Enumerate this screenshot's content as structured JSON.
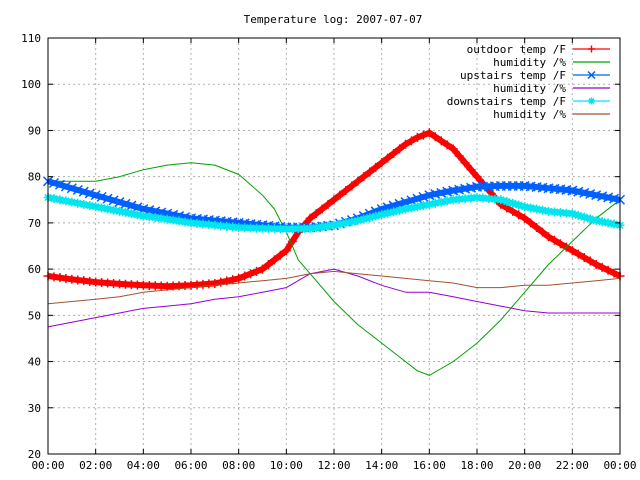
{
  "chart_data": {
    "type": "line",
    "title": "Temperature log: 2007-07-07",
    "xlabel": "",
    "ylabel": "",
    "x_range_hours": [
      0,
      24
    ],
    "ylim": [
      20,
      110
    ],
    "grid": true,
    "legend_position": "top-right",
    "x_tick_labels": [
      "00:00",
      "02:00",
      "04:00",
      "06:00",
      "08:00",
      "10:00",
      "12:00",
      "14:00",
      "16:00",
      "18:00",
      "20:00",
      "22:00",
      "00:00"
    ],
    "y_tick_labels": [
      "20",
      "30",
      "40",
      "50",
      "60",
      "70",
      "80",
      "90",
      "100",
      "110"
    ],
    "series": [
      {
        "name": "outdoor temp /F",
        "color": "#ff0000",
        "marker": "plus",
        "x": [
          0,
          1,
          2,
          3,
          4,
          5,
          6,
          7,
          8,
          9,
          10,
          10.5,
          11,
          12,
          13,
          14,
          15,
          15.5,
          16,
          17,
          18,
          19,
          20,
          21,
          22,
          23,
          24
        ],
        "values": [
          58.5,
          57.8,
          57.2,
          56.8,
          56.5,
          56.3,
          56.5,
          56.9,
          58,
          60,
          64,
          68,
          71,
          75,
          79,
          83,
          87,
          88.5,
          89.5,
          86,
          80,
          74,
          71,
          67,
          64,
          61,
          58.5
        ]
      },
      {
        "name": "humidity /%",
        "color": "#00a000",
        "marker": "none",
        "x": [
          0,
          1,
          2,
          3,
          4,
          5,
          6,
          7,
          8,
          9,
          9.5,
          10,
          10.5,
          11,
          12,
          13,
          14,
          15,
          15.5,
          16,
          16.5,
          17,
          18,
          19,
          20,
          21,
          22,
          23,
          24
        ],
        "values": [
          79,
          79,
          79,
          80,
          81.5,
          82.5,
          83,
          82.5,
          80.5,
          76,
          73,
          68,
          62,
          59,
          53,
          48,
          44,
          40,
          38,
          37,
          38.5,
          40,
          44,
          49,
          55,
          61,
          66,
          71,
          75
        ]
      },
      {
        "name": "upstairs temp /F",
        "color": "#0060ff",
        "marker": "x",
        "x": [
          0,
          1,
          2,
          3,
          4,
          5,
          6,
          7,
          8,
          9,
          10,
          11,
          12,
          13,
          14,
          15,
          16,
          17,
          18,
          19,
          20,
          21,
          22,
          23,
          24
        ],
        "values": [
          79,
          77.5,
          76,
          74.5,
          73,
          72,
          71,
          70.5,
          70,
          69.5,
          69,
          69,
          69.5,
          71,
          73,
          74.5,
          76,
          77,
          77.8,
          78,
          78,
          77.5,
          77,
          76,
          75
        ]
      },
      {
        "name": "humidity /%",
        "color": "#9400d3",
        "marker": "none",
        "x": [
          0,
          1,
          2,
          3,
          4,
          5,
          6,
          7,
          8,
          9,
          10,
          11,
          12,
          13,
          14,
          15,
          16,
          17,
          18,
          19,
          20,
          21,
          22,
          23,
          24
        ],
        "values": [
          47.5,
          48.5,
          49.5,
          50.5,
          51.5,
          52,
          52.5,
          53.5,
          54,
          55,
          56,
          59,
          60,
          58.5,
          56.5,
          55,
          55,
          54,
          53,
          52,
          51,
          50.5,
          50.5,
          50.5,
          50.5
        ]
      },
      {
        "name": "downstairs temp /F",
        "color": "#00e5ee",
        "marker": "star",
        "x": [
          0,
          1,
          2,
          3,
          4,
          5,
          6,
          7,
          8,
          9,
          10,
          11,
          12,
          13,
          14,
          15,
          16,
          17,
          18,
          19,
          20,
          21,
          22,
          23,
          24
        ],
        "values": [
          75.5,
          74.5,
          73.5,
          72.5,
          71.5,
          70.8,
          70,
          69.5,
          69,
          68.8,
          68.7,
          68.8,
          69.5,
          70.5,
          71.8,
          73,
          74,
          75,
          75.5,
          75,
          73.5,
          72.5,
          72,
          70.5,
          69.5
        ]
      },
      {
        "name": "humidity /%",
        "color": "#a0522d",
        "marker": "none",
        "x": [
          0,
          1,
          2,
          3,
          4,
          5,
          6,
          7,
          8,
          9,
          10,
          11,
          12,
          13,
          14,
          15,
          16,
          17,
          18,
          19,
          20,
          21,
          22,
          23,
          24
        ],
        "values": [
          52.5,
          53,
          53.5,
          54,
          55,
          55.5,
          56,
          56.5,
          57,
          57.5,
          58,
          59,
          59.5,
          59,
          58.5,
          58,
          57.5,
          57,
          56,
          56,
          56.5,
          56.5,
          57,
          57.5,
          58
        ]
      }
    ]
  }
}
